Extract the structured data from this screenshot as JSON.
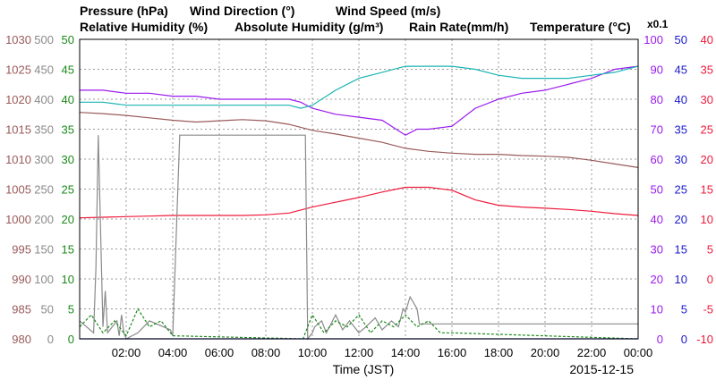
{
  "chart_data": {
    "type": "line",
    "date_label": "2015-12-15",
    "xlabel": "Time (JST)",
    "x_ticks": [
      "02:00",
      "04:00",
      "06:00",
      "08:00",
      "10:00",
      "12:00",
      "14:00",
      "16:00",
      "18:00",
      "20:00",
      "22:00",
      "00:00"
    ],
    "x_range_hours": [
      0,
      24
    ],
    "grid": true,
    "legend": [
      {
        "name": "Pressure (hPa)",
        "color": "#9a5a5a"
      },
      {
        "name": "Wind Direction (°)",
        "color": "#8a8a8a"
      },
      {
        "name": "Wind Speed (m/s)",
        "color": "#1a8a1a"
      },
      {
        "name": "Relative Humidity (%)",
        "color": "#9a1aee"
      },
      {
        "name": "Absolute Humidity (g/m³)",
        "color": "#1ab4b4"
      },
      {
        "name": "Rain Rate(mm/h)",
        "color": "#1a1acc"
      },
      {
        "name": "Temperature (°C)",
        "color": "#ee1a3a"
      }
    ],
    "abs_humidity_scale_note": "x0.1",
    "axes": {
      "pressure": {
        "color": "#9a5a5a",
        "range": [
          980,
          1030
        ],
        "ticks": [
          "980",
          "985",
          "990",
          "995",
          "1000",
          "1005",
          "1010",
          "1015",
          "1020",
          "1025",
          "1030"
        ]
      },
      "wind_direction": {
        "color": "#8a8a8a",
        "range": [
          0,
          500
        ],
        "ticks": [
          "0",
          "50",
          "100",
          "150",
          "200",
          "250",
          "300",
          "350",
          "400",
          "450",
          "500"
        ]
      },
      "wind_speed": {
        "color": "#1a8a1a",
        "range": [
          0,
          50
        ],
        "ticks": [
          "0",
          "5",
          "10",
          "15",
          "20",
          "25",
          "30",
          "35",
          "40",
          "45",
          "50"
        ]
      },
      "relative_humidity": {
        "color": "#9a1aee",
        "range": [
          0,
          100
        ],
        "ticks": [
          "0",
          "10",
          "20",
          "30",
          "40",
          "50",
          "60",
          "70",
          "80",
          "90",
          "100"
        ]
      },
      "rain_rate": {
        "color": "#1a1acc",
        "range": [
          0,
          50
        ],
        "ticks": [
          "0",
          "5",
          "10",
          "15",
          "20",
          "25",
          "30",
          "35",
          "40",
          "45",
          "50"
        ]
      },
      "temperature": {
        "color": "#ee1a3a",
        "range": [
          -10,
          40
        ],
        "ticks": [
          "-10",
          "-5",
          "0",
          "5",
          "10",
          "15",
          "20",
          "25",
          "30",
          "35",
          "40"
        ]
      }
    },
    "series": [
      {
        "name": "Pressure (hPa)",
        "axis": "pressure",
        "color": "#9a5a5a",
        "x": [
          0,
          1,
          2,
          3,
          4,
          5,
          6,
          7,
          8,
          9,
          10,
          11,
          12,
          13,
          14,
          15,
          16,
          17,
          18,
          19,
          20,
          21,
          22,
          23,
          24
        ],
        "y": [
          1017.8,
          1017.6,
          1017.3,
          1016.9,
          1016.5,
          1016.2,
          1016.4,
          1016.6,
          1016.4,
          1015.8,
          1014.8,
          1014.2,
          1013.5,
          1012.8,
          1011.8,
          1011.3,
          1011.0,
          1010.8,
          1010.8,
          1010.6,
          1010.5,
          1010.3,
          1009.8,
          1009.2,
          1008.6
        ]
      },
      {
        "name": "Relative Humidity (%)",
        "axis": "relative_humidity",
        "color": "#9a1aee",
        "x": [
          0,
          1,
          2,
          3,
          4,
          5,
          6,
          7,
          8,
          9,
          9.5,
          10,
          11,
          12,
          13,
          14,
          14.5,
          15,
          16,
          17,
          18,
          19,
          20,
          21,
          22,
          23,
          24
        ],
        "y": [
          83,
          83,
          82,
          82,
          81,
          81,
          80,
          80,
          80,
          80,
          79,
          77,
          75,
          74,
          73,
          68,
          70,
          70,
          71,
          77,
          80,
          82,
          83,
          85,
          87,
          90,
          91
        ]
      },
      {
        "name": "Absolute Humidity (g/m³)",
        "axis": "absolute_humidity_x0.1",
        "color": "#1ab4b4",
        "x": [
          0,
          1,
          2,
          3,
          4,
          5,
          6,
          7,
          8,
          9,
          9.5,
          10,
          11,
          12,
          13,
          14,
          15,
          16,
          17,
          18,
          19,
          20,
          21,
          22,
          23,
          24
        ],
        "y": [
          79,
          79,
          78,
          78,
          78,
          78,
          78,
          78,
          78,
          78,
          77,
          78,
          83,
          87,
          89,
          91,
          91,
          91,
          90,
          88,
          87,
          87,
          87,
          88,
          89,
          91
        ]
      },
      {
        "name": "Temperature (°C)",
        "axis": "temperature",
        "color": "#ee1a3a",
        "x": [
          0,
          1,
          2,
          3,
          4,
          5,
          6,
          7,
          8,
          9,
          10,
          11,
          12,
          13,
          14,
          15,
          16,
          17,
          18,
          19,
          20,
          21,
          22,
          23,
          24
        ],
        "y": [
          10.2,
          10.3,
          10.4,
          10.5,
          10.6,
          10.6,
          10.6,
          10.6,
          10.7,
          11.0,
          12.0,
          12.8,
          13.6,
          14.5,
          15.3,
          15.3,
          14.8,
          13.2,
          12.3,
          12.0,
          11.8,
          11.6,
          11.3,
          10.9,
          10.6
        ]
      },
      {
        "name": "Wind Direction (°)",
        "axis": "wind_direction",
        "color": "#8a8a8a",
        "x": [
          0,
          0.6,
          0.7,
          0.8,
          1.0,
          1.1,
          1.2,
          1.6,
          1.7,
          1.8,
          1.9,
          2.0,
          2.5,
          3.0,
          3.6,
          3.9,
          4.0,
          4.3,
          6.0,
          8.0,
          9.5,
          9.7,
          9.8,
          10.0,
          10.1,
          10.4,
          10.6,
          10.8,
          11.0,
          11.3,
          11.6,
          12.0,
          12.3,
          12.7,
          13.0,
          13.4,
          13.7,
          13.9,
          14.0,
          14.2,
          14.5,
          14.6,
          15,
          18,
          20,
          24
        ],
        "y": [
          30,
          10,
          120,
          340,
          20,
          80,
          10,
          30,
          5,
          40,
          10,
          0,
          10,
          30,
          20,
          15,
          5,
          340,
          340,
          340,
          340,
          340,
          0,
          10,
          20,
          30,
          10,
          25,
          40,
          15,
          30,
          10,
          20,
          35,
          15,
          30,
          20,
          50,
          45,
          70,
          50,
          25,
          25,
          25,
          25,
          25
        ]
      },
      {
        "name": "Wind Speed (m/s)",
        "axis": "wind_speed",
        "color": "#1a8a1a",
        "x": [
          0,
          0.5,
          1.0,
          1.5,
          2.0,
          2.5,
          3.0,
          3.5,
          4.0,
          9.6,
          10.0,
          10.5,
          11.0,
          11.5,
          12.0,
          12.5,
          13.0,
          13.5,
          14.0,
          14.5,
          15.0,
          15.5,
          16.0,
          24
        ],
        "y": [
          2,
          4,
          1,
          3,
          0.5,
          5,
          2,
          3,
          0.5,
          0,
          4,
          1,
          3,
          2,
          4,
          1,
          3,
          2,
          4,
          2,
          3,
          1,
          1,
          0
        ]
      },
      {
        "name": "Rain Rate(mm/h)",
        "axis": "rain_rate",
        "color": "#1a1acc",
        "x": [
          0,
          24
        ],
        "y": [
          0,
          0
        ]
      }
    ]
  }
}
